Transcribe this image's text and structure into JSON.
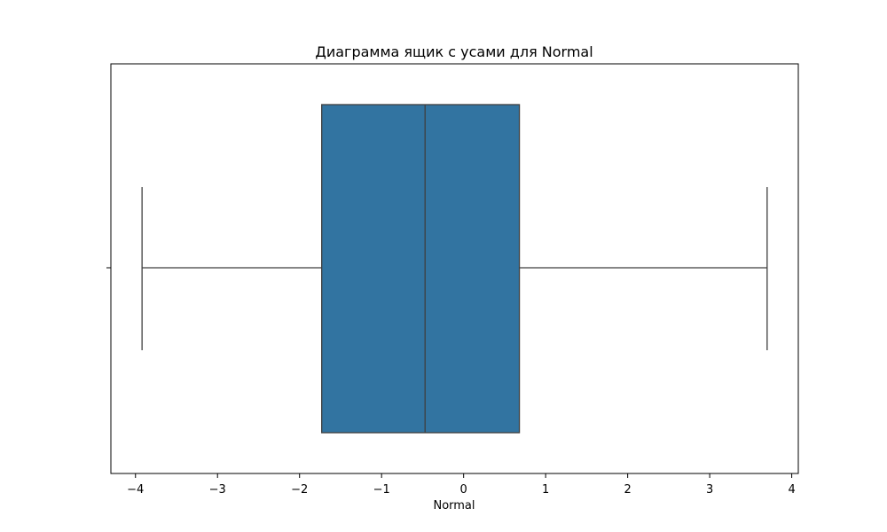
{
  "chart_data": {
    "type": "box",
    "orientation": "horizontal",
    "title": "Диаграмма ящик с усами для Normal",
    "xlabel": "Normal",
    "ylabel": "",
    "xlim": [
      -4.3,
      4.08
    ],
    "xticks": [
      {
        "value": -4,
        "label": "−4"
      },
      {
        "value": -3,
        "label": "−3"
      },
      {
        "value": -2,
        "label": "−2"
      },
      {
        "value": -1,
        "label": "−1"
      },
      {
        "value": 0,
        "label": "0"
      },
      {
        "value": 1,
        "label": "1"
      },
      {
        "value": 2,
        "label": "2"
      },
      {
        "value": 3,
        "label": "3"
      },
      {
        "value": 4,
        "label": "4"
      }
    ],
    "grid": false,
    "series": [
      {
        "whisker_low": -3.92,
        "q1": -1.73,
        "median": -0.47,
        "q3": 0.68,
        "whisker_high": 3.7,
        "color": "#3274a1"
      }
    ]
  },
  "colors": {
    "box_fill": "#3274a1",
    "box_edge": "#3f3f3f",
    "axes": "#000000"
  }
}
